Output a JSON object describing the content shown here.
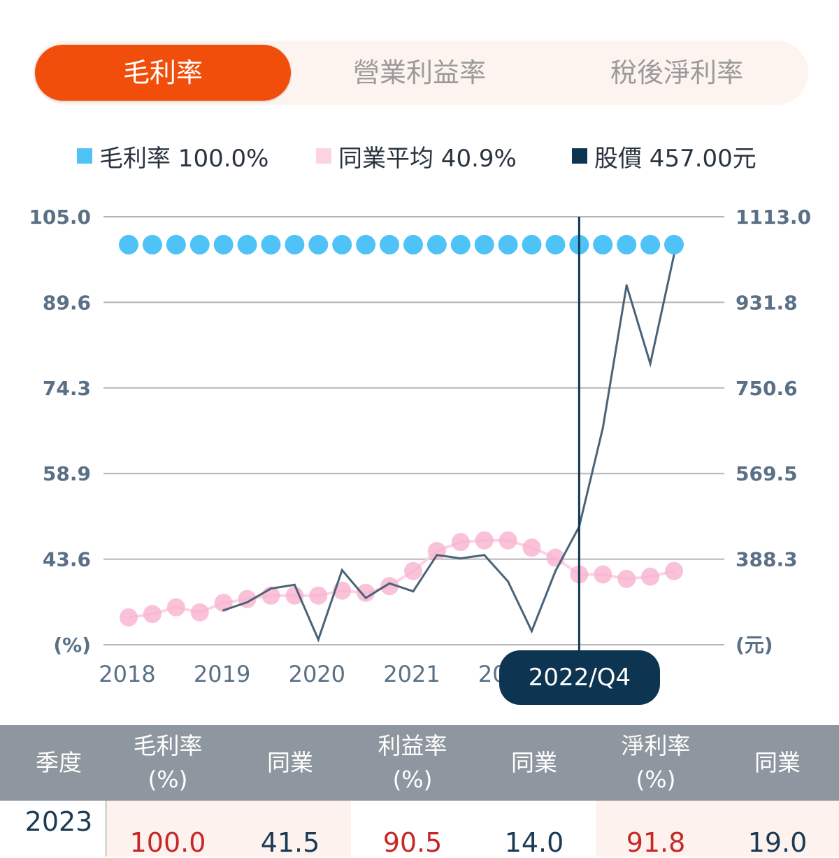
{
  "tabs": [
    {
      "label": "毛利率",
      "active": true
    },
    {
      "label": "營業利益率",
      "active": false
    },
    {
      "label": "稅後淨利率",
      "active": false
    }
  ],
  "legend": [
    {
      "label": "毛利率 100.0%",
      "color": "#4fc3f7"
    },
    {
      "label": "同業平均 40.9%",
      "color": "#fbd3e3"
    },
    {
      "label": "股價 457.00元",
      "color": "#0d3450"
    }
  ],
  "chart_data": {
    "type": "line",
    "x": [
      "2018Q1",
      "2018Q2",
      "2018Q3",
      "2018Q4",
      "2019Q1",
      "2019Q2",
      "2019Q3",
      "2019Q4",
      "2020Q1",
      "2020Q2",
      "2020Q3",
      "2020Q4",
      "2021Q1",
      "2021Q2",
      "2021Q3",
      "2021Q4",
      "2022Q1",
      "2022Q2",
      "2022Q3",
      "2022Q4",
      "2023Q1",
      "2023Q2",
      "2023Q3",
      "2023Q4"
    ],
    "x_tick_labels": [
      "2018",
      "2019",
      "2020",
      "2021",
      "2022"
    ],
    "y_left": {
      "ticks": [
        "105.0",
        "89.6",
        "74.3",
        "58.9",
        "43.6"
      ],
      "unit": "(%)",
      "range": [
        28.3,
        105.0
      ]
    },
    "y_right": {
      "ticks": [
        "1113.0",
        "931.8",
        "750.6",
        "569.5",
        "388.3"
      ],
      "unit": "(元)",
      "range": [
        207.1,
        1113.0
      ]
    },
    "grid": true,
    "series": [
      {
        "name": "毛利率",
        "axis": "left",
        "color": "#4fc3f7",
        "values": [
          100,
          100,
          100,
          100,
          100,
          100,
          100,
          100,
          100,
          100,
          100,
          100,
          100,
          100,
          100,
          100,
          100,
          100,
          100,
          100,
          100,
          100,
          100,
          100
        ]
      },
      {
        "name": "同業平均",
        "axis": "left",
        "color": "#f9a8c9",
        "values": [
          33.2,
          33.8,
          35.0,
          34.1,
          35.8,
          36.5,
          37.1,
          37.1,
          37.1,
          38.0,
          37.6,
          38.8,
          41.5,
          45.1,
          46.7,
          47.0,
          47.0,
          45.7,
          43.9,
          40.9,
          40.9,
          40.1,
          40.5,
          41.5
        ]
      },
      {
        "name": "股價",
        "axis": "right",
        "color": "#4a6378",
        "values": [
          null,
          null,
          null,
          null,
          280,
          297,
          326,
          334,
          218,
          365,
          306,
          337,
          320,
          397,
          390,
          397,
          341,
          236,
          363,
          457,
          666,
          968,
          802,
          1032
        ]
      }
    ],
    "selected": "2022/Q4"
  },
  "table": {
    "headers": [
      [
        "季度"
      ],
      [
        "毛利率",
        "(%)"
      ],
      [
        "同業"
      ],
      [
        "利益率",
        "(%)"
      ],
      [
        "同業"
      ],
      [
        "淨利率",
        "(%)"
      ],
      [
        "同業"
      ]
    ],
    "rows": [
      {
        "period": "2023",
        "values": [
          "100.0",
          "41.5",
          "90.5",
          "14.0",
          "91.8",
          "19.0"
        ]
      }
    ]
  }
}
